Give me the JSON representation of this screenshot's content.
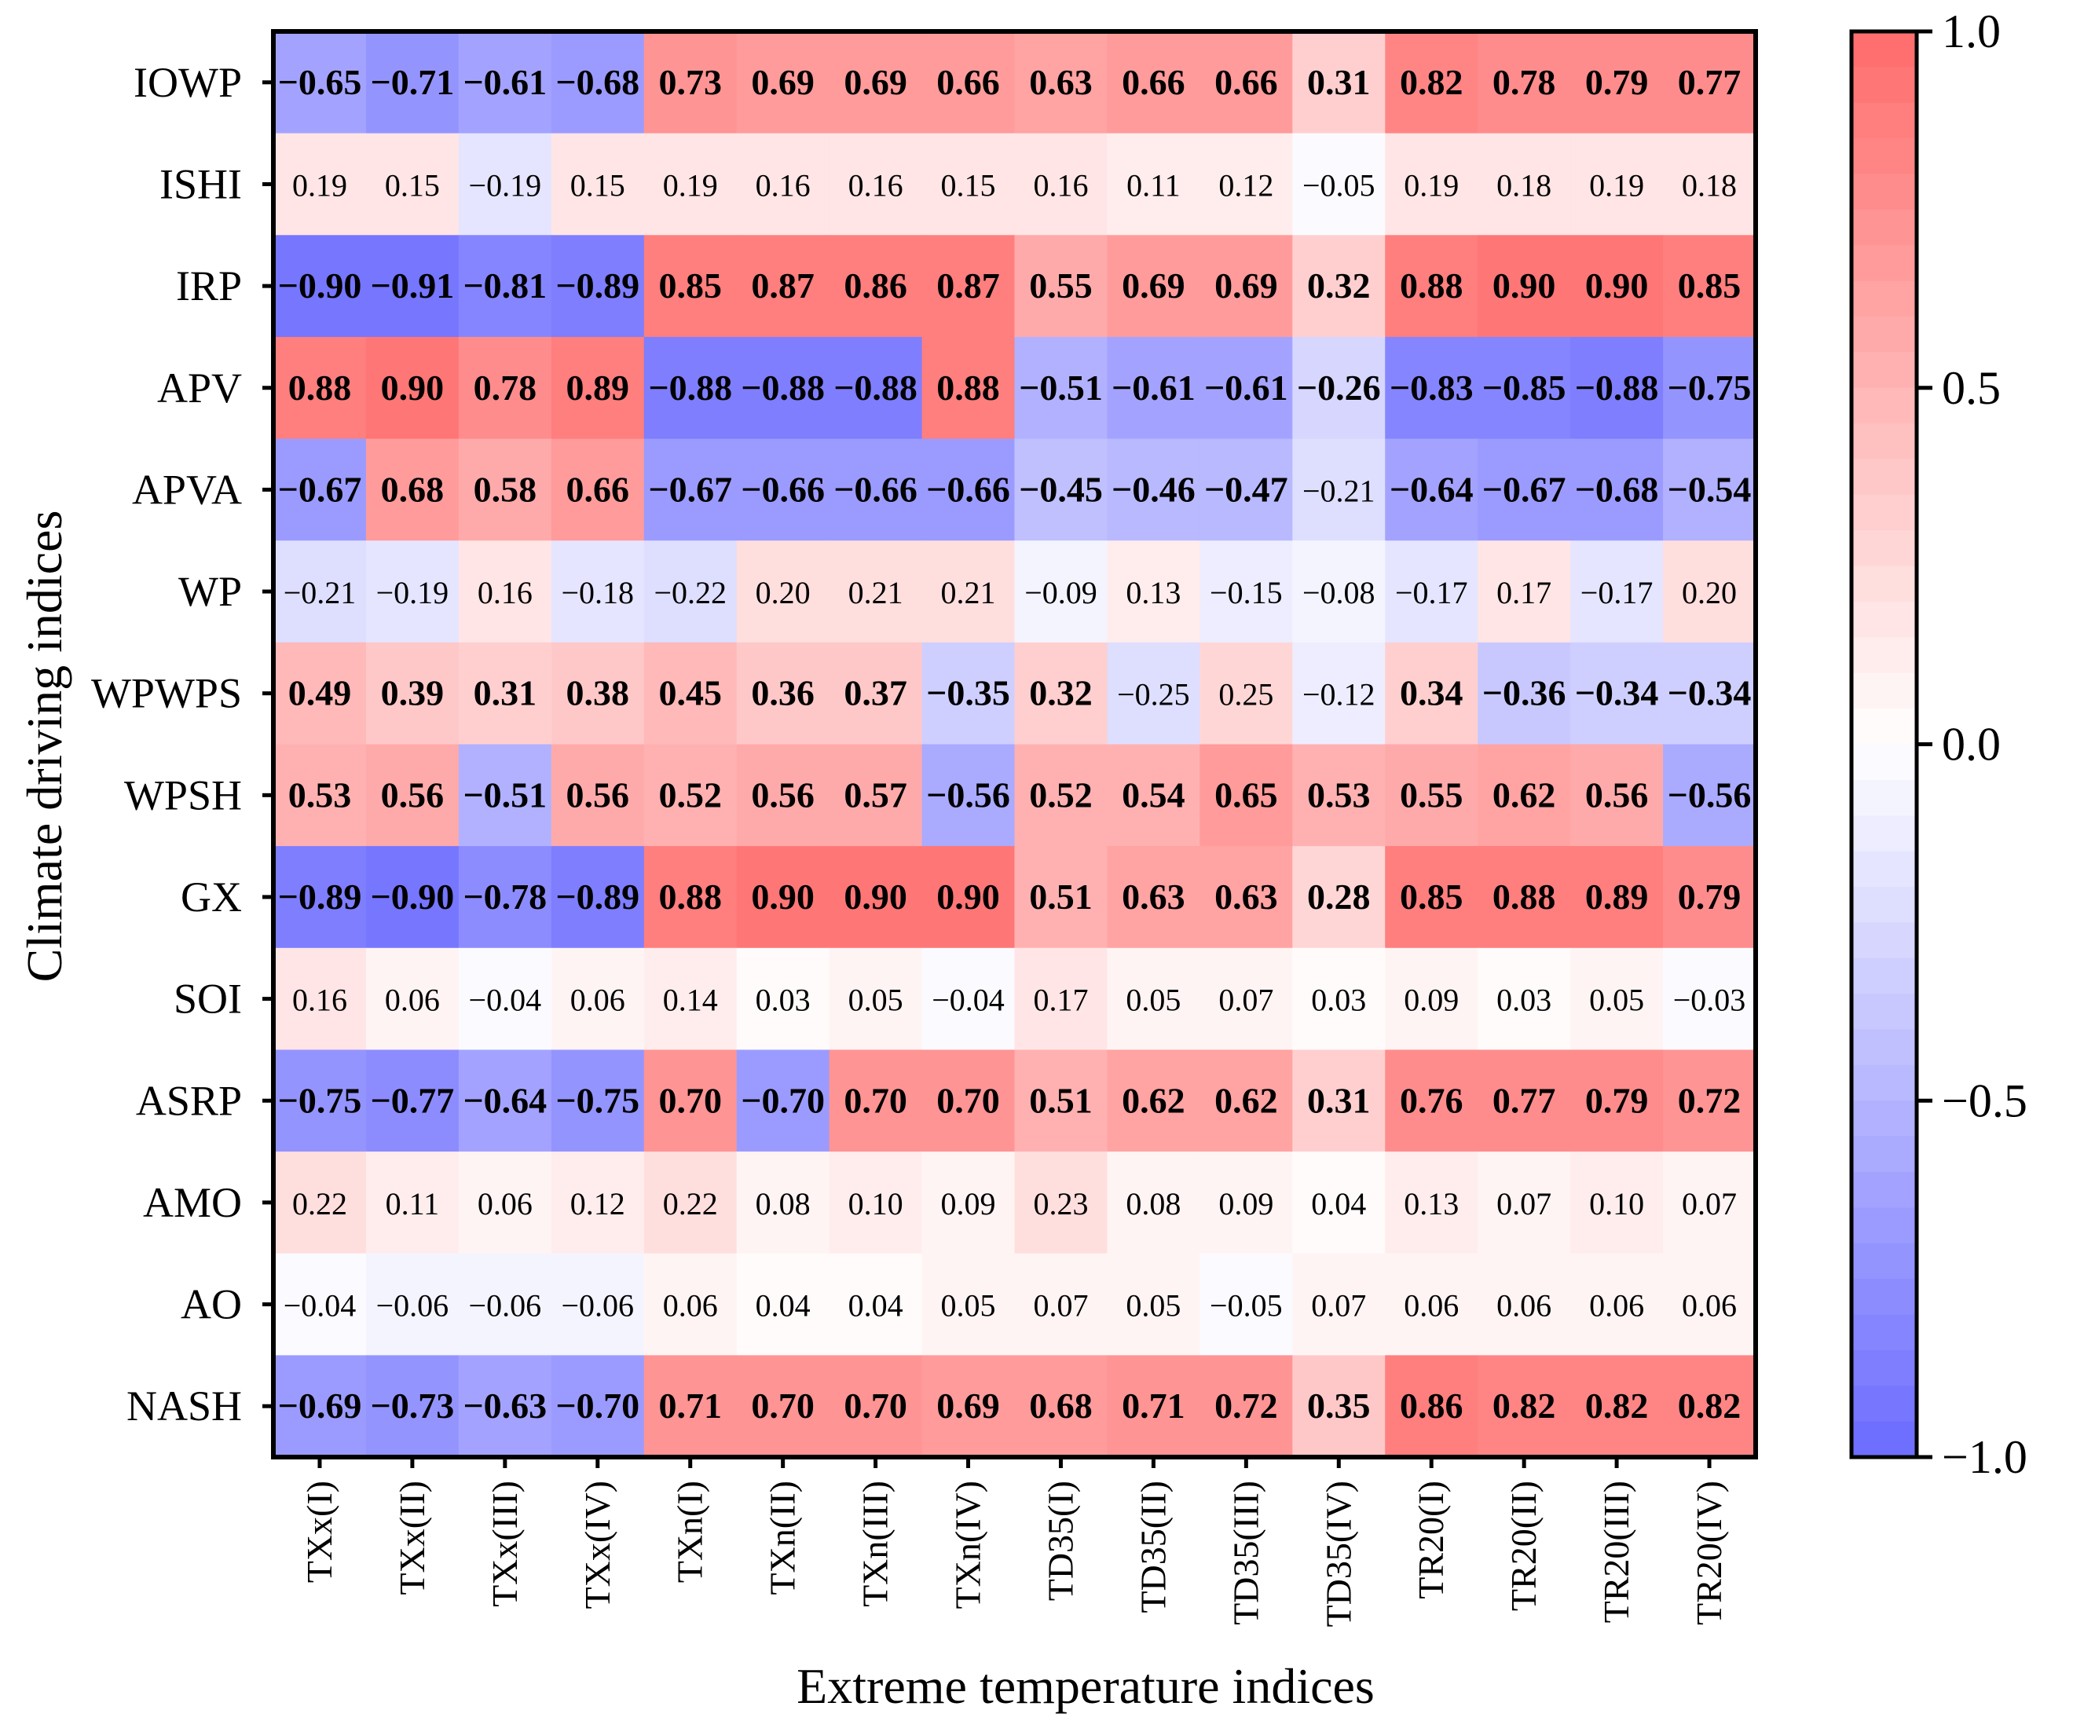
{
  "chart_data": {
    "type": "heatmap",
    "title": "",
    "xlabel": "Extreme temperature indices",
    "ylabel": "Climate driving indices",
    "columns": [
      "TXx(I)",
      "TXx(II)",
      "TXx(III)",
      "TXx(IV)",
      "TXn(I)",
      "TXn(II)",
      "TXn(III)",
      "TXn(IV)",
      "TD35(I)",
      "TD35(II)",
      "TD35(III)",
      "TD35(IV)",
      "TR20(I)",
      "TR20(II)",
      "TR20(III)",
      "TR20(IV)"
    ],
    "rows": [
      "IOWP",
      "ISHI",
      "IRP",
      "APV",
      "APVA",
      "WP",
      "WPWPS",
      "WPSH",
      "GX",
      "SOI",
      "ASRP",
      "AMO",
      "AO",
      "NASH"
    ],
    "values": [
      [
        -0.65,
        -0.71,
        -0.61,
        -0.68,
        0.73,
        0.69,
        0.69,
        0.66,
        0.63,
        0.66,
        0.66,
        0.31,
        0.82,
        0.78,
        0.79,
        0.77
      ],
      [
        0.19,
        0.15,
        -0.19,
        0.15,
        0.19,
        0.16,
        0.16,
        0.15,
        0.16,
        0.11,
        0.12,
        -0.05,
        0.19,
        0.18,
        0.19,
        0.18
      ],
      [
        -0.9,
        -0.91,
        -0.81,
        -0.89,
        0.85,
        0.87,
        0.86,
        0.87,
        0.55,
        0.69,
        0.69,
        0.32,
        0.88,
        0.9,
        0.9,
        0.85
      ],
      [
        0.88,
        0.9,
        0.78,
        0.89,
        -0.88,
        -0.88,
        -0.88,
        0.88,
        -0.51,
        -0.61,
        -0.61,
        -0.26,
        -0.83,
        -0.85,
        -0.88,
        -0.75
      ],
      [
        -0.67,
        0.68,
        0.58,
        0.66,
        -0.67,
        -0.66,
        -0.66,
        -0.66,
        -0.45,
        -0.46,
        -0.47,
        -0.21,
        -0.64,
        -0.67,
        -0.68,
        -0.54
      ],
      [
        -0.21,
        -0.19,
        0.16,
        -0.18,
        -0.22,
        0.2,
        0.21,
        0.21,
        -0.09,
        0.13,
        -0.15,
        -0.08,
        -0.17,
        0.17,
        -0.17,
        0.2
      ],
      [
        0.49,
        0.39,
        0.31,
        0.38,
        0.45,
        0.36,
        0.37,
        -0.35,
        0.32,
        -0.25,
        0.25,
        -0.12,
        0.34,
        -0.36,
        -0.34,
        -0.34
      ],
      [
        0.53,
        0.56,
        -0.51,
        0.56,
        0.52,
        0.56,
        0.57,
        -0.56,
        0.52,
        0.54,
        0.65,
        0.53,
        0.55,
        0.62,
        0.56,
        -0.56
      ],
      [
        -0.89,
        -0.9,
        -0.78,
        -0.89,
        0.88,
        0.9,
        0.9,
        0.9,
        0.51,
        0.63,
        0.63,
        0.28,
        0.85,
        0.88,
        0.89,
        0.79
      ],
      [
        0.16,
        0.06,
        -0.04,
        0.06,
        0.14,
        0.03,
        0.05,
        -0.04,
        0.17,
        0.05,
        0.07,
        0.03,
        0.09,
        0.03,
        0.05,
        -0.03
      ],
      [
        -0.75,
        -0.77,
        -0.64,
        -0.75,
        0.7,
        -0.7,
        0.7,
        0.7,
        0.51,
        0.62,
        0.62,
        0.31,
        0.76,
        0.77,
        0.79,
        0.72
      ],
      [
        0.22,
        0.11,
        0.06,
        0.12,
        0.22,
        0.08,
        0.1,
        0.09,
        0.23,
        0.08,
        0.09,
        0.04,
        0.13,
        0.07,
        0.1,
        0.07
      ],
      [
        -0.04,
        -0.06,
        -0.06,
        -0.06,
        0.06,
        0.04,
        0.04,
        0.05,
        0.07,
        0.05,
        -0.05,
        0.07,
        0.06,
        0.06,
        0.06,
        0.06
      ],
      [
        -0.69,
        -0.73,
        -0.63,
        -0.7,
        0.71,
        0.7,
        0.7,
        0.69,
        0.68,
        0.71,
        0.72,
        0.35,
        0.86,
        0.82,
        0.82,
        0.82
      ]
    ],
    "significant": [
      [
        true,
        true,
        true,
        true,
        true,
        true,
        true,
        true,
        true,
        true,
        true,
        true,
        true,
        true,
        true,
        true
      ],
      [
        false,
        false,
        false,
        false,
        false,
        false,
        false,
        false,
        false,
        false,
        false,
        false,
        false,
        false,
        false,
        false
      ],
      [
        true,
        true,
        true,
        true,
        true,
        true,
        true,
        true,
        true,
        true,
        true,
        true,
        true,
        true,
        true,
        true
      ],
      [
        true,
        true,
        true,
        true,
        true,
        true,
        true,
        true,
        true,
        true,
        true,
        true,
        true,
        true,
        true,
        true
      ],
      [
        true,
        true,
        true,
        true,
        true,
        true,
        true,
        true,
        true,
        true,
        true,
        false,
        true,
        true,
        true,
        true
      ],
      [
        false,
        false,
        false,
        false,
        false,
        false,
        false,
        false,
        false,
        false,
        false,
        false,
        false,
        false,
        false,
        false
      ],
      [
        true,
        true,
        true,
        true,
        true,
        true,
        true,
        true,
        true,
        false,
        false,
        false,
        true,
        true,
        true,
        true
      ],
      [
        true,
        true,
        true,
        true,
        true,
        true,
        true,
        true,
        true,
        true,
        true,
        true,
        true,
        true,
        true,
        true
      ],
      [
        true,
        true,
        true,
        true,
        true,
        true,
        true,
        true,
        true,
        true,
        true,
        true,
        true,
        true,
        true,
        true
      ],
      [
        false,
        false,
        false,
        false,
        false,
        false,
        false,
        false,
        false,
        false,
        false,
        false,
        false,
        false,
        false,
        false
      ],
      [
        true,
        true,
        true,
        true,
        true,
        true,
        true,
        true,
        true,
        true,
        true,
        true,
        true,
        true,
        true,
        true
      ],
      [
        false,
        false,
        false,
        false,
        false,
        false,
        false,
        false,
        false,
        false,
        false,
        false,
        false,
        false,
        false,
        false
      ],
      [
        false,
        false,
        false,
        false,
        false,
        false,
        false,
        false,
        false,
        false,
        false,
        false,
        false,
        false,
        false,
        false
      ],
      [
        true,
        true,
        true,
        true,
        true,
        true,
        true,
        true,
        true,
        true,
        true,
        true,
        true,
        true,
        true,
        true
      ]
    ],
    "colorbar": {
      "range": [
        -1.0,
        1.0
      ],
      "ticks": [
        1.0,
        0.5,
        0.0,
        -0.5,
        -1.0
      ],
      "tick_labels": [
        "1.0",
        "0.5",
        "0.0",
        "−0.5",
        "−1.0"
      ],
      "low_color": "#6b6bff",
      "mid_color": "#ffffff",
      "high_color": "#ff6b6b",
      "levels": 40
    },
    "grid": false,
    "legend": "right"
  }
}
